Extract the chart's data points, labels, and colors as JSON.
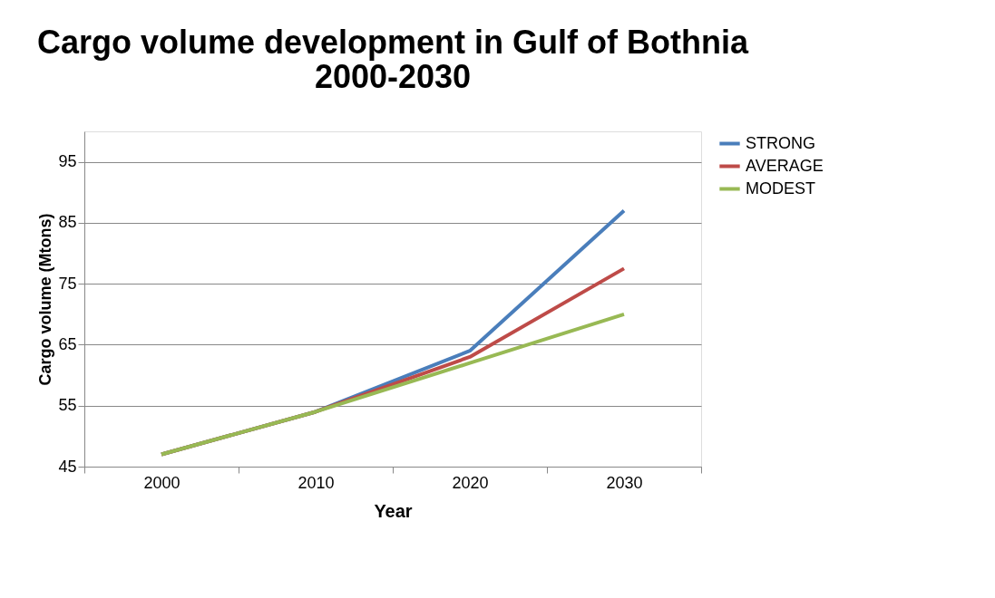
{
  "chart_data": {
    "type": "line",
    "title": "Cargo volume development in Gulf of Bothnia 2000-2030",
    "xlabel": "Year",
    "ylabel": "Cargo volume (Mtons)",
    "categories": [
      "2000",
      "2010",
      "2020",
      "2030"
    ],
    "series": [
      {
        "name": "STRONG",
        "color": "#4a7ebb",
        "values": [
          47,
          54,
          64,
          87
        ]
      },
      {
        "name": "AVERAGE",
        "color": "#be4b48",
        "values": [
          47,
          54,
          63,
          77.5
        ]
      },
      {
        "name": "MODEST",
        "color": "#98b954",
        "values": [
          47,
          54,
          62,
          70
        ]
      }
    ],
    "ylim": [
      45,
      100
    ],
    "yticks": [
      45,
      55,
      65,
      75,
      85,
      95
    ],
    "grid": "y",
    "legend": "right",
    "marker": "none",
    "line_style": "solid"
  }
}
